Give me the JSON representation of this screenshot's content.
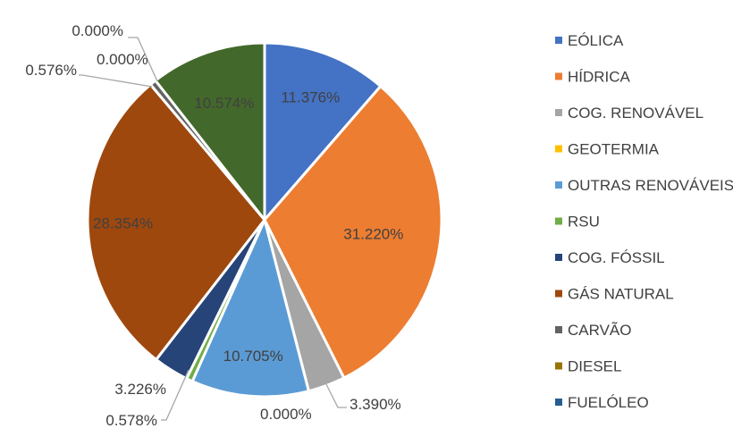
{
  "chart_data": {
    "type": "pie",
    "title": "",
    "legend_position": "right",
    "slices": [
      {
        "name": "EÓLICA",
        "value": 11.376,
        "label": "11.376%",
        "color": "#4472c4"
      },
      {
        "name": "HÍDRICA",
        "value": 31.22,
        "label": "31.220%",
        "color": "#ed7d31"
      },
      {
        "name": "COG. RENOVÁVEL",
        "value": 3.39,
        "label": "3.390%",
        "color": "#a5a5a5"
      },
      {
        "name": "GEOTERMIA",
        "value": 0.0,
        "label": "0.000%",
        "color": "#ffc000"
      },
      {
        "name": "OUTRAS RENOVÁVEIS",
        "value": 10.705,
        "label": "10.705%",
        "color": "#5b9bd5"
      },
      {
        "name": "RSU",
        "value": 0.578,
        "label": "0.578%",
        "color": "#70ad47"
      },
      {
        "name": "COG. FÓSSIL",
        "value": 3.226,
        "label": "3.226%",
        "color": "#264478"
      },
      {
        "name": "GÁS NATURAL",
        "value": 28.354,
        "label": "28.354%",
        "color": "#9e480e"
      },
      {
        "name": "CARVÃO",
        "value": 0.576,
        "label": "0.576%",
        "color": "#636363"
      },
      {
        "name": "DIESEL",
        "value": 0.0,
        "label": "0.000%",
        "color": "#997300"
      },
      {
        "name": "FUELÓLEO",
        "value": 0.0,
        "label": "0.000%",
        "color": "#255e91"
      },
      {
        "name": "",
        "value": 10.574,
        "label": "10.574%",
        "color": "#43682b"
      }
    ],
    "legend": [
      {
        "name": "EÓLICA",
        "color": "#4472c4"
      },
      {
        "name": "HÍDRICA",
        "color": "#ed7d31"
      },
      {
        "name": "COG. RENOVÁVEL",
        "color": "#a5a5a5"
      },
      {
        "name": "GEOTERMIA",
        "color": "#ffc000"
      },
      {
        "name": "OUTRAS RENOVÁVEIS",
        "color": "#5b9bd5"
      },
      {
        "name": "RSU",
        "color": "#70ad47"
      },
      {
        "name": "COG. FÓSSIL",
        "color": "#264478"
      },
      {
        "name": "GÁS NATURAL",
        "color": "#9e480e"
      },
      {
        "name": "CARVÃO",
        "color": "#636363"
      },
      {
        "name": "DIESEL",
        "color": "#997300"
      },
      {
        "name": "FUELÓLEO",
        "color": "#255e91"
      }
    ]
  }
}
